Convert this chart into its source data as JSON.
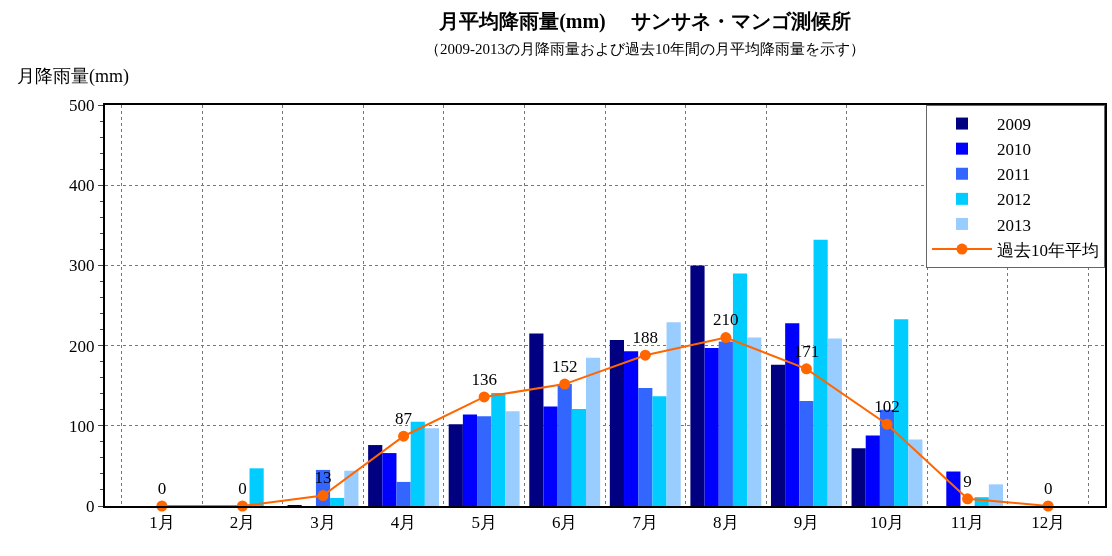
{
  "chart_data": {
    "type": "bar",
    "title": "月平均降雨量(mm)　 サンサネ・マンゴ測候所",
    "subtitle": "（2009-2013の月降雨量および過去10年間の月平均降雨量を示す）",
    "ylabel": "月降雨量(mm)",
    "categories": [
      "1月",
      "2月",
      "3月",
      "4月",
      "5月",
      "6月",
      "7月",
      "8月",
      "9月",
      "10月",
      "11月",
      "12月"
    ],
    "series": [
      {
        "name": "2009",
        "color": "#000080",
        "values": [
          0,
          0,
          1,
          76,
          102,
          215,
          207,
          300,
          176,
          72,
          0,
          0
        ]
      },
      {
        "name": "2010",
        "color": "#0000ff",
        "values": [
          0,
          0,
          0,
          66,
          114,
          124,
          193,
          197,
          228,
          88,
          43,
          0
        ]
      },
      {
        "name": "2011",
        "color": "#3366ff",
        "values": [
          0,
          0,
          45,
          30,
          112,
          152,
          147,
          205,
          131,
          120,
          0,
          0
        ]
      },
      {
        "name": "2012",
        "color": "#00ccff",
        "values": [
          0,
          47,
          10,
          105,
          141,
          121,
          137,
          290,
          332,
          233,
          11,
          0
        ]
      },
      {
        "name": "2013",
        "color": "#99ccff",
        "values": [
          0,
          0,
          44,
          97,
          118,
          185,
          229,
          210,
          209,
          83,
          27,
          0
        ]
      },
      {
        "name": "過去10年平均",
        "type": "line",
        "color": "#ff6600",
        "marker": "circle",
        "values": [
          0,
          0,
          13,
          87,
          136,
          152,
          188,
          210,
          171,
          102,
          9,
          0
        ],
        "value_labels": [
          "0",
          "0",
          "13",
          "87",
          "136",
          "152",
          "188",
          "210",
          "171",
          "102",
          "9",
          "0"
        ]
      }
    ],
    "ylim": [
      0,
      500
    ],
    "yticks": [
      0,
      100,
      200,
      300,
      400,
      500
    ],
    "grid": true,
    "legend": "top right"
  }
}
